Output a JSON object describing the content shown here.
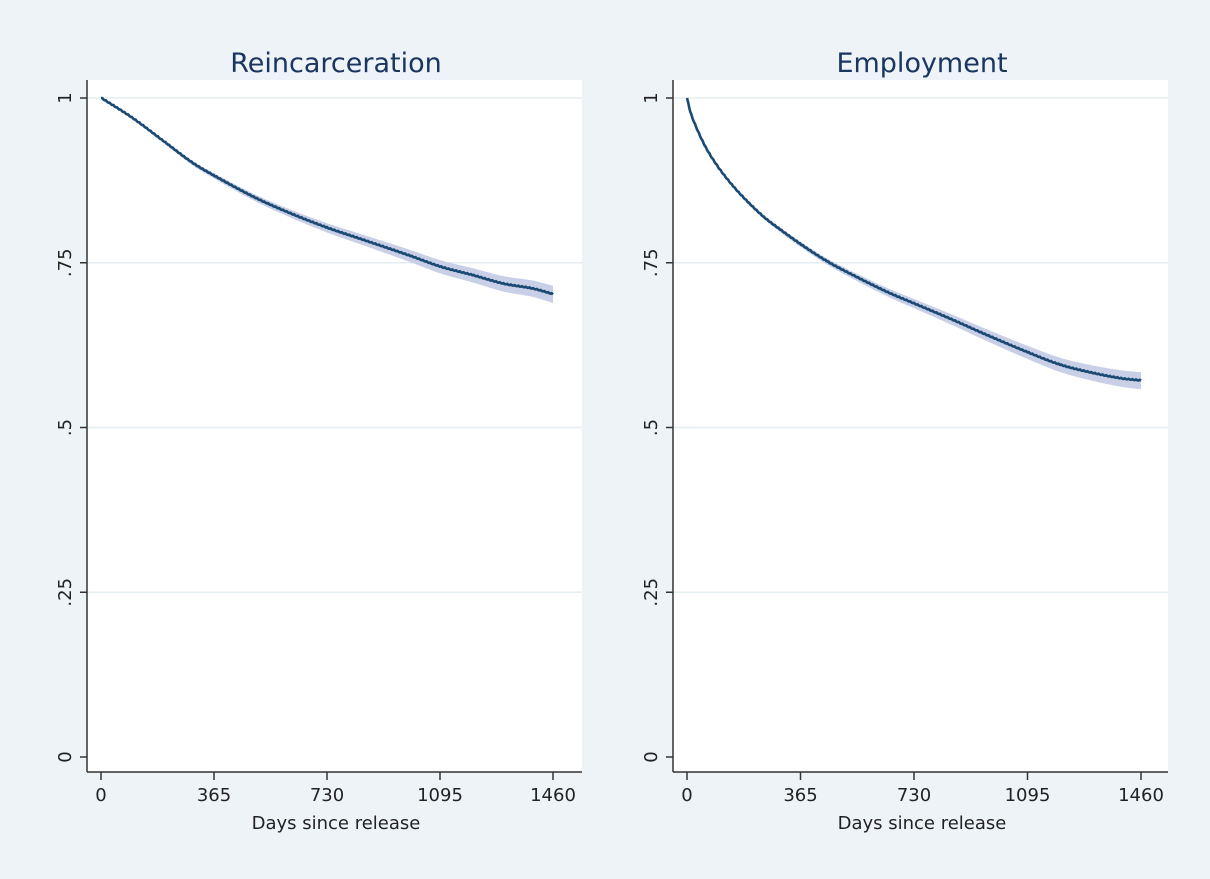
{
  "colors": {
    "background": "#eef3f8",
    "plot_area": "#ffffff",
    "gridline": "#e4eef0",
    "line": "#1a4a74",
    "ci_band": "#c9cfe6",
    "axis": "#333333"
  },
  "chart_data": [
    {
      "type": "line",
      "title": "Reincarceration",
      "xlabel": "Days since release",
      "ylabel": "",
      "xlim": [
        0,
        1460
      ],
      "ylim": [
        0,
        1
      ],
      "xticks": [
        0,
        365,
        730,
        1095,
        1460
      ],
      "xtick_labels": [
        "0",
        "365",
        "730",
        "1095",
        "1460"
      ],
      "yticks": [
        0,
        0.25,
        0.5,
        0.75,
        1
      ],
      "ytick_labels": [
        "0",
        ".25",
        ".5",
        ".75",
        "1"
      ],
      "grid": true,
      "confidence_band": true,
      "series": [
        {
          "x": [
            0,
            100,
            200,
            300,
            365,
            500,
            600,
            730,
            850,
            1000,
            1095,
            1200,
            1300,
            1400,
            1460
          ],
          "y": [
            1.0,
            0.97,
            0.935,
            0.9,
            0.882,
            0.848,
            0.827,
            0.803,
            0.784,
            0.76,
            0.744,
            0.731,
            0.718,
            0.71,
            0.702
          ]
        }
      ]
    },
    {
      "type": "line",
      "title": "Employment",
      "xlabel": "Days since release",
      "ylabel": "",
      "xlim": [
        0,
        1460
      ],
      "ylim": [
        0,
        1
      ],
      "xticks": [
        0,
        365,
        730,
        1095,
        1460
      ],
      "xtick_labels": [
        "0",
        "365",
        "730",
        "1095",
        "1460"
      ],
      "yticks": [
        0,
        0.25,
        0.5,
        0.75,
        1
      ],
      "ytick_labels": [
        "0",
        ".25",
        ".5",
        ".75",
        "1"
      ],
      "grid": true,
      "confidence_band": true,
      "series": [
        {
          "x": [
            0,
            10,
            30,
            60,
            100,
            150,
            200,
            250,
            300,
            365,
            450,
            550,
            650,
            730,
            850,
            950,
            1095,
            1200,
            1300,
            1400,
            1460
          ],
          "y": [
            1.0,
            0.98,
            0.955,
            0.925,
            0.895,
            0.865,
            0.84,
            0.818,
            0.8,
            0.778,
            0.752,
            0.727,
            0.704,
            0.688,
            0.664,
            0.643,
            0.614,
            0.595,
            0.583,
            0.574,
            0.571
          ]
        }
      ]
    }
  ]
}
